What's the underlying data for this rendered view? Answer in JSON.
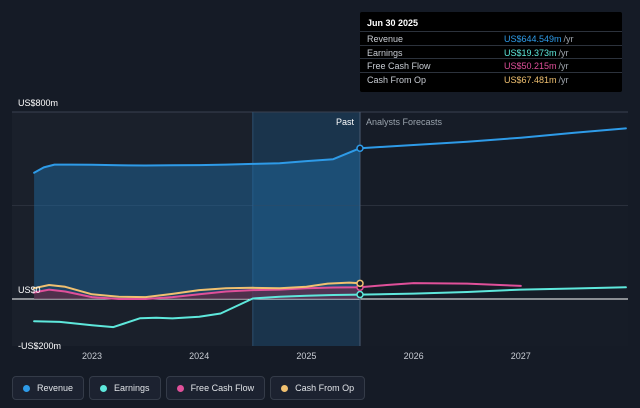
{
  "chart_data": {
    "type": "area",
    "y_axis_labels": [
      {
        "label": "US$800m",
        "value": 800
      },
      {
        "label": "US$0",
        "value": 0
      },
      {
        "label": "-US$200m",
        "value": -200
      }
    ],
    "ylim": [
      -200,
      800
    ],
    "x_ticks": [
      {
        "label": "2023",
        "value": 2023.0
      },
      {
        "label": "2024",
        "value": 2024.0
      },
      {
        "label": "2025",
        "value": 2025.0
      },
      {
        "label": "2026",
        "value": 2026.0
      },
      {
        "label": "2027",
        "value": 2027.0
      }
    ],
    "past_label": "Past",
    "forecast_label": "Analysts Forecasts",
    "divider_x": 2025.5,
    "highlight_start_x": 2024.5,
    "series": [
      {
        "name": "Revenue",
        "color": "#2e9be8",
        "x": [
          2022.46,
          2022.55,
          2022.65,
          2022.8,
          2023.0,
          2023.25,
          2023.5,
          2023.75,
          2024.0,
          2024.25,
          2024.5,
          2024.75,
          2025.0,
          2025.25,
          2025.5,
          2025.75,
          2026.0,
          2026.5,
          2027.0,
          2027.5,
          2027.98
        ],
        "y": [
          540,
          563,
          575,
          575,
          574,
          572,
          571,
          572,
          573,
          575,
          578,
          581,
          590,
          598,
          645,
          652,
          659,
          673,
          690,
          711,
          730
        ]
      },
      {
        "name": "Earnings",
        "color": "#5ee8dc",
        "x": [
          2022.46,
          2022.7,
          2023.0,
          2023.2,
          2023.3,
          2023.45,
          2023.6,
          2023.75,
          2024.0,
          2024.2,
          2024.35,
          2024.5,
          2024.75,
          2025.0,
          2025.25,
          2025.5,
          2025.75,
          2026.0,
          2026.5,
          2027.0,
          2027.5,
          2027.98
        ],
        "y": [
          -95,
          -98,
          -112,
          -120,
          -105,
          -82,
          -80,
          -83,
          -76,
          -62,
          -30,
          2,
          10,
          14,
          17,
          19,
          21,
          23,
          30,
          40,
          45,
          50
        ]
      },
      {
        "name": "Free Cash Flow",
        "color": "#e0509a",
        "x": [
          2022.46,
          2022.6,
          2022.75,
          2023.0,
          2023.25,
          2023.5,
          2023.75,
          2024.0,
          2024.25,
          2024.5,
          2024.75,
          2025.0,
          2025.25,
          2025.5,
          2025.75,
          2026.0,
          2026.5,
          2027.0
        ],
        "y": [
          28,
          40,
          32,
          8,
          0,
          0,
          8,
          20,
          32,
          38,
          40,
          46,
          49,
          50,
          60,
          68,
          66,
          56
        ]
      },
      {
        "name": "Cash From Op",
        "color": "#f0c070",
        "x": [
          2022.46,
          2022.6,
          2022.75,
          2023.0,
          2023.25,
          2023.5,
          2023.75,
          2024.0,
          2024.25,
          2024.5,
          2024.75,
          2025.0,
          2025.2,
          2025.4,
          2025.5
        ],
        "y": [
          46,
          60,
          52,
          20,
          10,
          8,
          22,
          38,
          46,
          48,
          46,
          52,
          66,
          70,
          67
        ]
      }
    ]
  },
  "tooltip": {
    "date": "Jun 30 2025",
    "rows": [
      {
        "label": "Revenue",
        "value": "US$644.549m",
        "unit": "/yr",
        "color": "#2e9be8"
      },
      {
        "label": "Earnings",
        "value": "US$19.373m",
        "unit": "/yr",
        "color": "#5ee8dc"
      },
      {
        "label": "Free Cash Flow",
        "value": "US$50.215m",
        "unit": "/yr",
        "color": "#e0509a"
      },
      {
        "label": "Cash From Op",
        "value": "US$67.481m",
        "unit": "/yr",
        "color": "#f0c070"
      }
    ]
  },
  "legend": [
    {
      "label": "Revenue",
      "color": "#2e9be8"
    },
    {
      "label": "Earnings",
      "color": "#5ee8dc"
    },
    {
      "label": "Free Cash Flow",
      "color": "#e0509a"
    },
    {
      "label": "Cash From Op",
      "color": "#f0c070"
    }
  ]
}
